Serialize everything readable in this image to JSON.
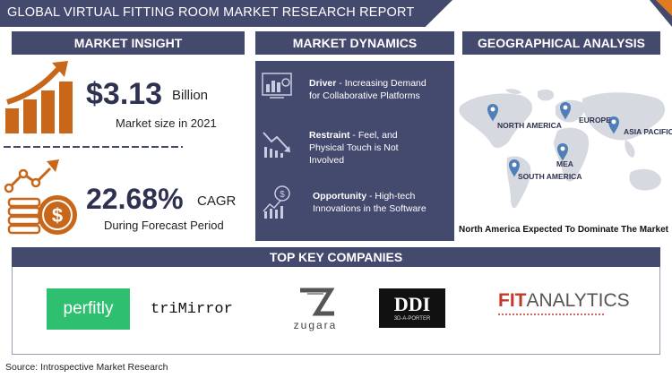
{
  "header": {
    "title": "GLOBAL VIRTUAL FITTING ROOM MARKET RESEARCH REPORT"
  },
  "market_insight": {
    "heading": "MARKET INSIGHT",
    "market_size_value": "$3.13",
    "market_size_unit": "Billion",
    "market_size_caption": "Market size in 2021",
    "cagr_value": "22.68%",
    "cagr_unit": "CAGR",
    "cagr_caption": "During Forecast Period"
  },
  "market_dynamics": {
    "heading": "MARKET DYNAMICS",
    "items": [
      {
        "label": "Driver",
        "line1": " - Increasing Demand",
        "line2": "for Collaborative Platforms",
        "line3": ""
      },
      {
        "label": "Restraint",
        "line1": " - Feel, and",
        "line2": "Physical Touch is Not",
        "line3": "Involved"
      },
      {
        "label": "Opportunity",
        "line1": " - High-tech",
        "line2": "Innovations in the Software",
        "line3": ""
      }
    ]
  },
  "geographical_analysis": {
    "heading": "GEOGRAPHICAL ANALYSIS",
    "regions": [
      "NORTH AMERICA",
      "EUROPE",
      "ASIA PACIFIC",
      "MEA",
      "SOUTH AMERICA"
    ],
    "caption": "North America Expected To Dominate The Market"
  },
  "companies": {
    "heading": "TOP KEY COMPANIES",
    "logos": [
      "perfitly",
      "triMirror",
      "zugara",
      "3D-A-PORTER",
      "FIT",
      "ANALYTICS"
    ]
  },
  "source": "Source: Introspective Market Research",
  "colors": {
    "navy": "#44496e",
    "orange": "#c8661a",
    "map_gray": "#d6d9e0",
    "pin_blue": "#4f7fb6"
  }
}
